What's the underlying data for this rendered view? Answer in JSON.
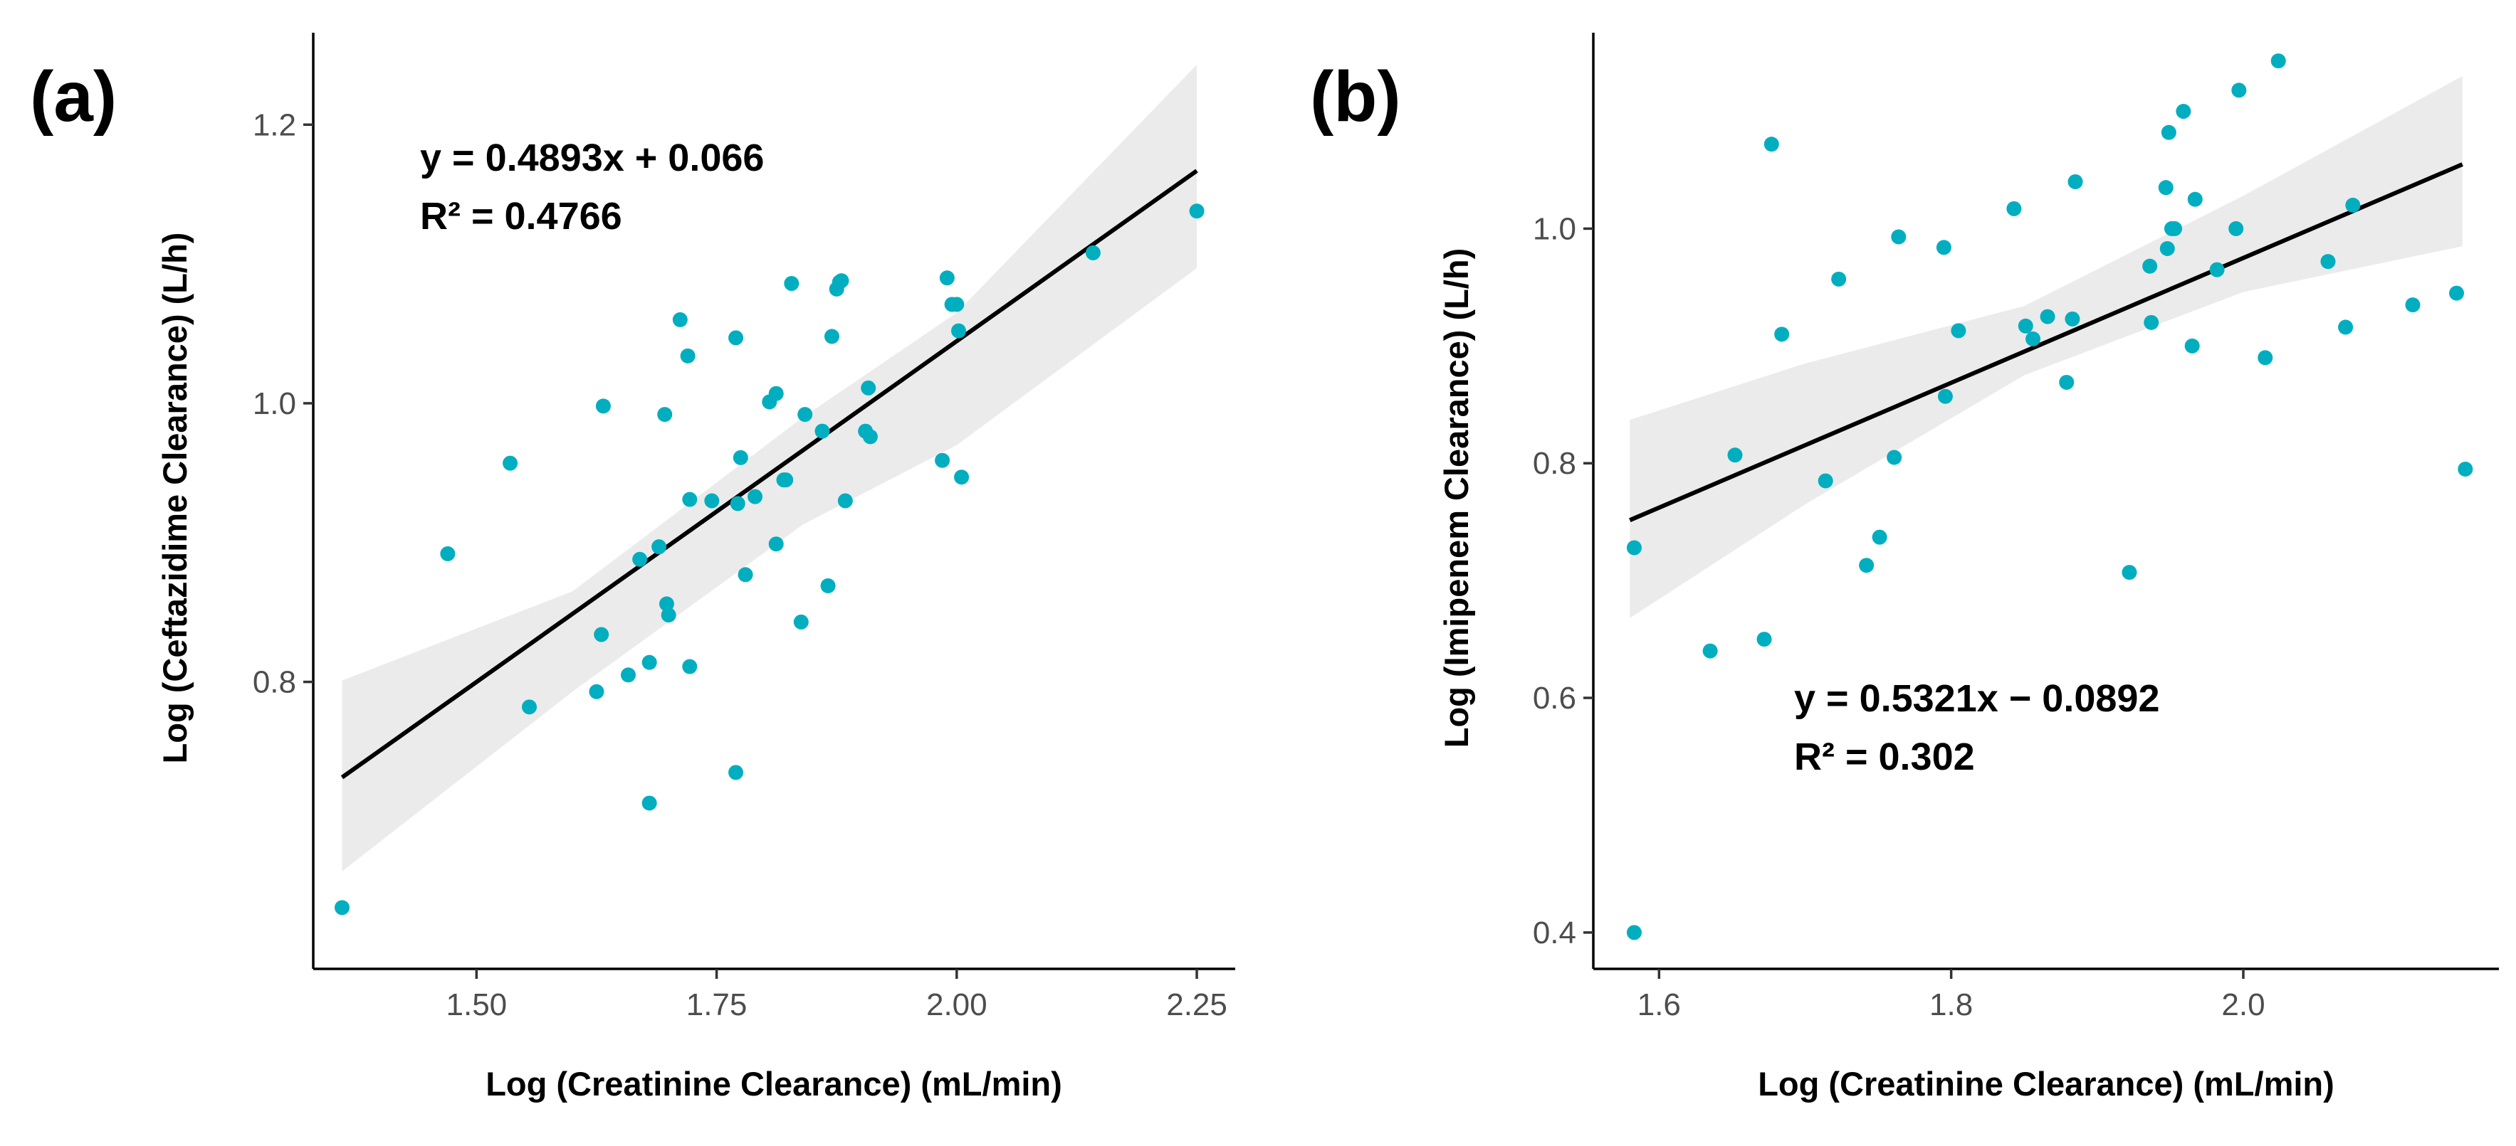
{
  "chart_data": [
    {
      "type": "scatter",
      "panel_label": "(a)",
      "xlabel": "Log (Creatinine Clearance) (mL/min)",
      "ylabel": "Log (Ceftazidime Clearance) (L/h)",
      "xlim": [
        1.33,
        2.29
      ],
      "ylim": [
        0.594,
        1.266
      ],
      "x_ticks": [
        1.5,
        1.75,
        2.0,
        2.25
      ],
      "x_tick_labels": [
        "1.50",
        "1.75",
        "2.00",
        "2.25"
      ],
      "y_ticks": [
        0.8,
        1.0,
        1.2
      ],
      "y_tick_labels": [
        "0.8",
        "1.0",
        "1.2"
      ],
      "grid": false,
      "point_color": "#00aebf",
      "line_color": "#000000",
      "band_color": "#ebebeb",
      "regression": {
        "slope": 0.4893,
        "intercept": 0.066,
        "x_range": [
          1.36,
          2.25
        ]
      },
      "confidence_band": {
        "x": [
          1.36,
          1.6,
          1.84,
          2.0,
          2.25
        ],
        "lower": [
          0.664,
          0.793,
          0.913,
          0.97,
          1.097
        ],
        "upper": [
          0.801,
          0.865,
          0.99,
          1.065,
          1.243
        ]
      },
      "annotation": [
        "y = 0.4893x + 0.066",
        "R² = 0.4766"
      ],
      "points": {
        "x": [
          1.36,
          1.47,
          1.535,
          1.555,
          1.625,
          1.63,
          1.632,
          1.658,
          1.67,
          1.68,
          1.68,
          1.69,
          1.696,
          1.698,
          1.7,
          1.712,
          1.72,
          1.722,
          1.722,
          1.745,
          1.77,
          1.77,
          1.772,
          1.775,
          1.78,
          1.79,
          1.805,
          1.812,
          1.812,
          1.82,
          1.822,
          1.828,
          1.838,
          1.842,
          1.86,
          1.866,
          1.87,
          1.875,
          1.878,
          1.88,
          1.884,
          1.905,
          1.908,
          1.91,
          1.985,
          1.99,
          1.995,
          2.0,
          2.002,
          2.005,
          2.142,
          2.25
        ],
        "y": [
          0.638,
          0.892,
          0.957,
          0.782,
          0.793,
          0.834,
          0.998,
          0.805,
          0.888,
          0.713,
          0.814,
          0.897,
          0.992,
          0.856,
          0.848,
          1.06,
          1.034,
          0.811,
          0.931,
          0.93,
          1.047,
          0.735,
          0.928,
          0.961,
          0.877,
          0.933,
          1.001,
          0.899,
          1.007,
          0.945,
          0.945,
          1.086,
          0.843,
          0.992,
          0.98,
          0.869,
          1.048,
          1.082,
          1.087,
          1.088,
          0.93,
          0.98,
          1.011,
          0.976,
          0.959,
          1.09,
          1.071,
          1.071,
          1.052,
          0.947,
          1.108,
          1.138
        ]
      }
    },
    {
      "type": "scatter",
      "panel_label": "(b)",
      "xlabel": "Log (Creatinine Clearance) (mL/min)",
      "ylabel": "Log (Imipenem Clearance) (L/h)",
      "xlim": [
        1.555,
        2.175
      ],
      "ylim": [
        0.369,
        1.167
      ],
      "x_ticks": [
        1.6,
        1.8,
        2.0
      ],
      "x_tick_labels": [
        "1.6",
        "1.8",
        "2.0"
      ],
      "y_ticks": [
        0.4,
        0.6,
        0.8,
        1.0
      ],
      "y_tick_labels": [
        "0.4",
        "0.6",
        "0.8",
        "1.0"
      ],
      "grid": false,
      "point_color": "#00aebf",
      "line_color": "#000000",
      "band_color": "#ebebeb",
      "regression": {
        "slope": 0.5321,
        "intercept": -0.0892,
        "x_range": [
          1.58,
          2.15
        ]
      },
      "confidence_band": {
        "x": [
          1.58,
          1.7,
          1.85,
          2.0,
          2.15
        ],
        "lower": [
          0.668,
          0.765,
          0.875,
          0.946,
          0.985
        ],
        "upper": [
          0.837,
          0.885,
          0.934,
          1.028,
          1.13
        ]
      },
      "annotation": [
        "y = 0.5321x − 0.0892",
        "R² = 0.302"
      ],
      "points": {
        "x": [
          1.583,
          1.583,
          1.635,
          1.652,
          1.672,
          1.677,
          1.684,
          1.714,
          1.723,
          1.742,
          1.751,
          1.761,
          1.764,
          1.795,
          1.796,
          1.805,
          1.843,
          1.851,
          1.856,
          1.866,
          1.879,
          1.883,
          1.885,
          1.922,
          1.936,
          1.937,
          1.947,
          1.948,
          1.949,
          1.951,
          1.953,
          1.959,
          1.965,
          1.967,
          1.982,
          1.995,
          1.997,
          2.015,
          2.024,
          2.058,
          2.07,
          2.075,
          2.116,
          2.146,
          2.152
        ],
        "y": [
          0.728,
          0.4,
          0.64,
          0.807,
          0.65,
          1.072,
          0.91,
          0.785,
          0.957,
          0.713,
          0.737,
          0.805,
          0.993,
          0.984,
          0.857,
          0.913,
          1.017,
          0.917,
          0.906,
          0.925,
          0.869,
          0.923,
          1.04,
          0.707,
          0.968,
          0.92,
          1.035,
          0.983,
          1.082,
          1.0,
          1.0,
          1.1,
          0.9,
          1.025,
          0.965,
          1.0,
          1.118,
          0.89,
          1.143,
          0.972,
          0.916,
          1.02,
          0.935,
          0.945,
          0.795
        ]
      }
    }
  ]
}
